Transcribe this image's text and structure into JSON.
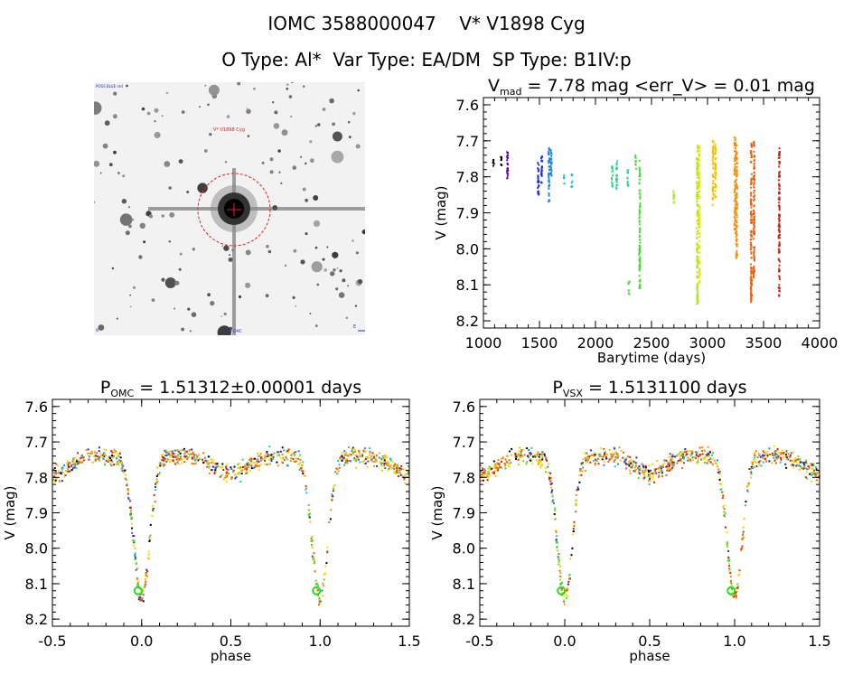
{
  "header": {
    "line1": "IOMC 3588000047    V* V1898 Cyg",
    "line2": "O Type: Al*  Var Type: EA/DM  SP Type: B1IV:p"
  },
  "finder": {
    "corner_tl": "POSS BLUE red",
    "marker_label": "V* V1898 Cyg",
    "corner_bl": "N",
    "corner_br": "E",
    "bottom_label": "4' FOV OMC"
  },
  "colors": {
    "c1": "#5a00a0",
    "c2": "#1e2ad0",
    "c3": "#1c86e0",
    "c4": "#1ec0d6",
    "c5": "#2ad690",
    "c6": "#52d640",
    "c7": "#a8e620",
    "c8": "#e6e600",
    "c9": "#f4c000",
    "c10": "#f09010",
    "c11": "#e86010",
    "c12": "#d82010",
    "dark": "#000000",
    "green_circle": "#20e020"
  },
  "chart_data": [
    {
      "type": "scatter",
      "title_main": "V",
      "title_sub": "mad",
      "title_rest": " = 7.78 mag <err_V> = 0.01 mag",
      "xlabel": "Barytime (days)",
      "ylabel": "V (mag)",
      "xlim": [
        1000,
        4000
      ],
      "ylim": [
        8.22,
        7.58
      ],
      "x_ticks": [
        "1000",
        "1500",
        "2000",
        "2500",
        "3000",
        "3500",
        "4000"
      ],
      "y_ticks": [
        "7.6",
        "7.7",
        "7.8",
        "7.9",
        "8.0",
        "8.1",
        "8.2"
      ],
      "groups": [
        {
          "x": 1090,
          "ymin": 7.75,
          "ymax": 7.77,
          "color": "dark"
        },
        {
          "x": 1160,
          "ymin": 7.74,
          "ymax": 7.77,
          "color": "dark"
        },
        {
          "x": 1215,
          "ymin": 7.73,
          "ymax": 7.81,
          "color": "c1"
        },
        {
          "x": 1490,
          "ymin": 7.76,
          "ymax": 7.85,
          "color": "c2"
        },
        {
          "x": 1520,
          "ymin": 7.74,
          "ymax": 7.82,
          "color": "c2"
        },
        {
          "x": 1585,
          "ymin": 7.72,
          "ymax": 7.88,
          "color": "c3"
        },
        {
          "x": 1605,
          "ymin": 7.71,
          "ymax": 7.8,
          "color": "c3"
        },
        {
          "x": 1720,
          "ymin": 7.79,
          "ymax": 7.82,
          "color": "c4"
        },
        {
          "x": 1790,
          "ymin": 7.79,
          "ymax": 7.83,
          "color": "c4"
        },
        {
          "x": 2150,
          "ymin": 7.77,
          "ymax": 7.83,
          "color": "c5"
        },
        {
          "x": 2190,
          "ymin": 7.75,
          "ymax": 7.84,
          "color": "c5"
        },
        {
          "x": 2290,
          "ymin": 7.78,
          "ymax": 7.83,
          "color": "c5"
        },
        {
          "x": 2300,
          "ymin": 8.09,
          "ymax": 8.13,
          "color": "c6"
        },
        {
          "x": 2360,
          "ymin": 7.74,
          "ymax": 7.78,
          "color": "c6"
        },
        {
          "x": 2395,
          "ymin": 7.75,
          "ymax": 8.11,
          "color": "c6"
        },
        {
          "x": 2700,
          "ymin": 7.84,
          "ymax": 7.88,
          "color": "c7"
        },
        {
          "x": 2910,
          "ymin": 7.7,
          "ymax": 8.16,
          "color": "c7"
        },
        {
          "x": 2925,
          "ymin": 7.71,
          "ymax": 8.1,
          "color": "c8"
        },
        {
          "x": 3050,
          "ymin": 7.7,
          "ymax": 7.88,
          "color": "c9"
        },
        {
          "x": 3070,
          "ymin": 7.71,
          "ymax": 7.86,
          "color": "c9"
        },
        {
          "x": 3245,
          "ymin": 7.69,
          "ymax": 7.96,
          "color": "c10"
        },
        {
          "x": 3260,
          "ymin": 7.71,
          "ymax": 8.03,
          "color": "c10"
        },
        {
          "x": 3390,
          "ymin": 7.7,
          "ymax": 8.15,
          "color": "c11"
        },
        {
          "x": 3415,
          "ymin": 7.7,
          "ymax": 8.08,
          "color": "c11"
        },
        {
          "x": 3640,
          "ymin": 7.72,
          "ymax": 8.14,
          "color": "c12"
        }
      ]
    },
    {
      "type": "scatter",
      "title_main": "P",
      "title_sub": "OMC",
      "title_rest": " = 1.51312±0.00001 days",
      "xlabel": "phase",
      "ylabel": "V (mag)",
      "xlim": [
        -0.5,
        1.5
      ],
      "ylim": [
        8.22,
        7.58
      ],
      "x_ticks": [
        "-0.5",
        "0.0",
        "0.5",
        "1.0",
        "1.5"
      ],
      "y_ticks": [
        "7.6",
        "7.7",
        "7.8",
        "7.9",
        "8.0",
        "8.1",
        "8.2"
      ],
      "light_curve": {
        "base_mag": 7.74,
        "secondary_depth": 0.05,
        "primary_depth": 0.4,
        "primary_width": 0.045,
        "secondary_width": 0.09,
        "scatter": 0.035,
        "minimum_mag": 8.12
      }
    },
    {
      "type": "scatter",
      "title_main": "P",
      "title_sub": "VSX",
      "title_rest": " = 1.5131100 days",
      "xlabel": "phase",
      "ylabel": "V (mag)",
      "xlim": [
        -0.5,
        1.5
      ],
      "ylim": [
        8.22,
        7.58
      ],
      "x_ticks": [
        "-0.5",
        "0.0",
        "0.5",
        "1.0",
        "1.5"
      ],
      "y_ticks": [
        "7.6",
        "7.7",
        "7.8",
        "7.9",
        "8.0",
        "8.1",
        "8.2"
      ],
      "light_curve": {
        "base_mag": 7.74,
        "secondary_depth": 0.05,
        "primary_depth": 0.4,
        "primary_width": 0.045,
        "secondary_width": 0.09,
        "scatter": 0.035,
        "minimum_mag": 8.12
      }
    }
  ]
}
